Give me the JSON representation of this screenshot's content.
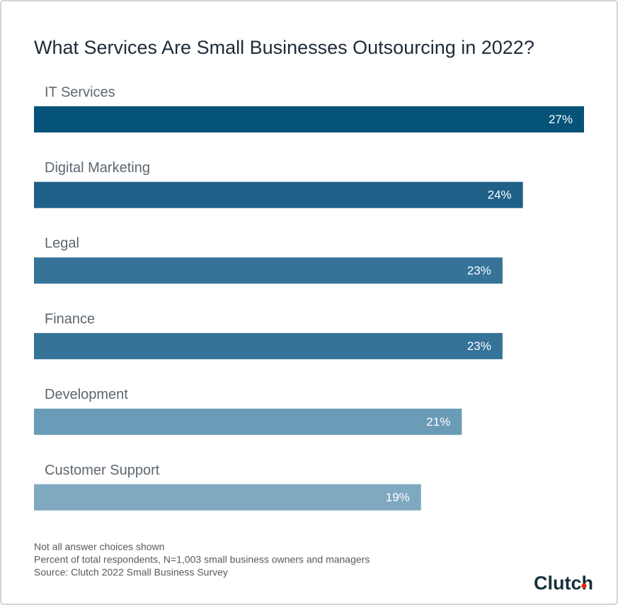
{
  "chart_data": {
    "type": "bar",
    "orientation": "horizontal",
    "title": "What Services Are Small Businesses Outsourcing in 2022?",
    "categories": [
      "IT Services",
      "Digital Marketing",
      "Legal",
      "Finance",
      "Development",
      "Customer Support"
    ],
    "values": [
      27,
      24,
      23,
      23,
      21,
      19
    ],
    "value_labels": [
      "27%",
      "24%",
      "23%",
      "23%",
      "21%",
      "19%"
    ],
    "colors": [
      "#055379",
      "#1f6088",
      "#357398",
      "#357398",
      "#6a9bb7",
      "#7fa8c1"
    ],
    "notes": [
      "Not all answer choices shown",
      "Percent of total respondents, N=1,003 small business owners and managers",
      "Source: Clutch 2022 Small Business Survey"
    ],
    "brand": "Clutch"
  }
}
